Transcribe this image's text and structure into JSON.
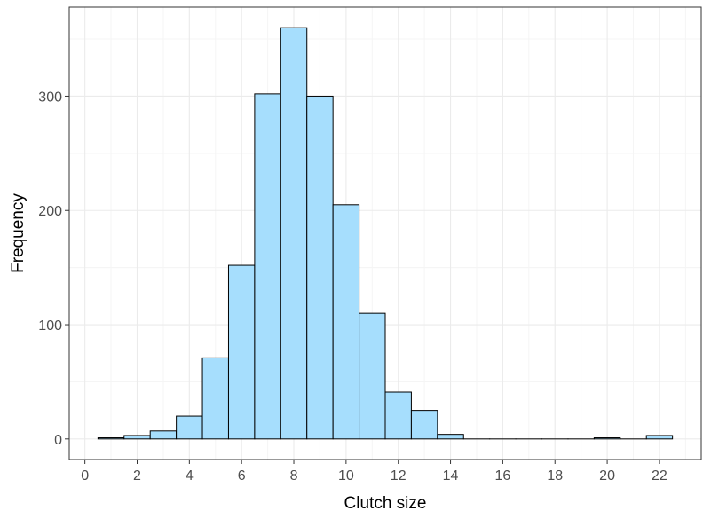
{
  "chart_data": {
    "type": "bar",
    "title": "",
    "xlabel": "Clutch size",
    "ylabel": "Frequency",
    "xlim": [
      -0.6,
      23.6
    ],
    "ylim": [
      -18,
      378
    ],
    "x_ticks": [
      0,
      2,
      4,
      6,
      8,
      10,
      12,
      14,
      16,
      18,
      20,
      22
    ],
    "y_ticks": [
      0,
      100,
      200,
      300
    ],
    "grid": true,
    "bin_width": 1,
    "categories": [
      1,
      2,
      3,
      4,
      5,
      6,
      7,
      8,
      9,
      10,
      11,
      12,
      13,
      14,
      15,
      16,
      17,
      18,
      19,
      20,
      21,
      22
    ],
    "values": [
      1,
      3,
      7,
      20,
      71,
      152,
      302,
      360,
      300,
      205,
      110,
      41,
      25,
      4,
      0,
      0,
      0,
      0,
      0,
      1,
      0,
      3
    ],
    "colors": {
      "bar_fill": "#a6defd",
      "bar_stroke": "#000000",
      "grid_major": "#ebebeb",
      "grid_minor": "#f5f5f5",
      "panel_border": "#333333",
      "tick_text": "#4d4d4d"
    }
  }
}
